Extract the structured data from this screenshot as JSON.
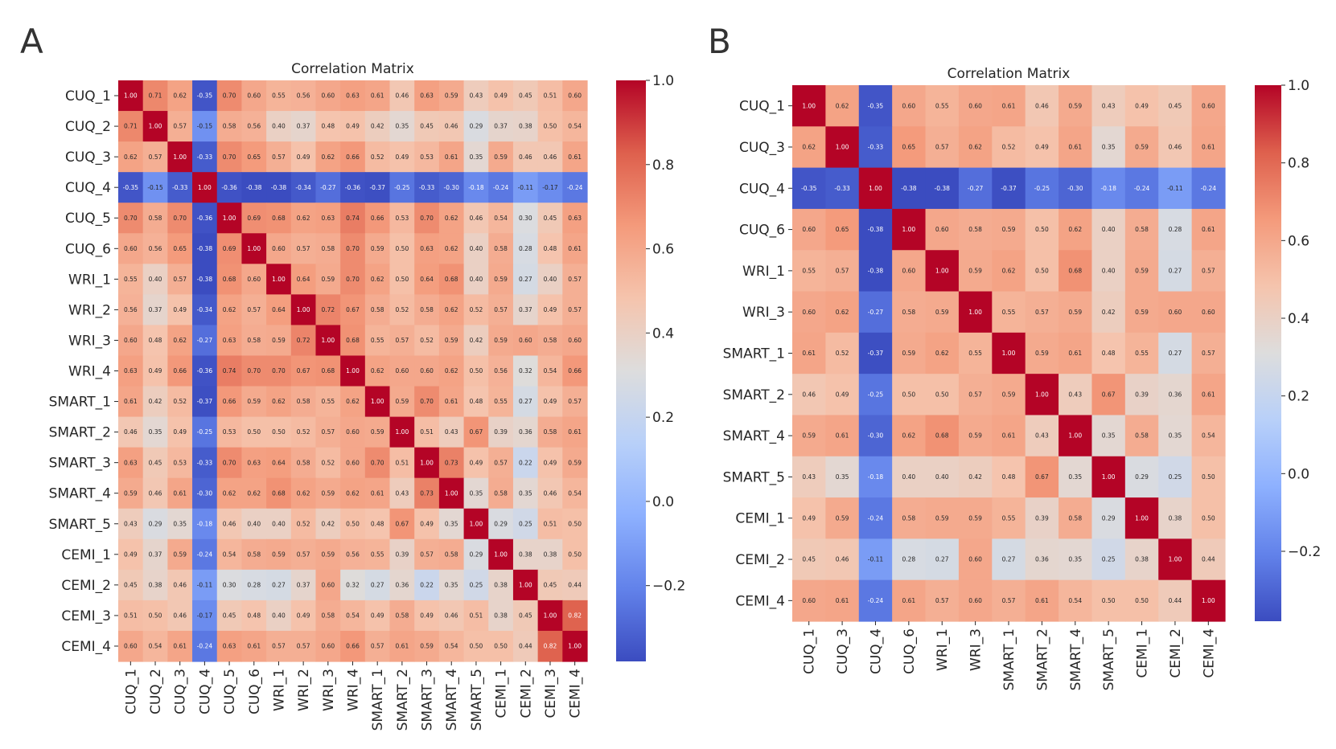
{
  "panels": [
    {
      "letter": "A"
    },
    {
      "letter": "B"
    }
  ],
  "chart_data": [
    {
      "type": "heatmap",
      "title": "Correlation Matrix",
      "labels": [
        "CUQ_1",
        "CUQ_2",
        "CUQ_3",
        "CUQ_4",
        "CUQ_5",
        "CUQ_6",
        "WRI_1",
        "WRI_2",
        "WRI_3",
        "WRI_4",
        "SMART_1",
        "SMART_2",
        "SMART_3",
        "SMART_4",
        "SMART_5",
        "CEMI_1",
        "CEMI_2",
        "CEMI_3",
        "CEMI_4"
      ],
      "values": [
        [
          1.0,
          0.71,
          0.62,
          -0.35,
          0.7,
          0.6,
          0.55,
          0.56,
          0.6,
          0.63,
          0.61,
          0.46,
          0.63,
          0.59,
          0.43,
          0.49,
          0.45,
          0.51,
          0.6
        ],
        [
          0.71,
          1.0,
          0.57,
          -0.15,
          0.58,
          0.56,
          0.4,
          0.37,
          0.48,
          0.49,
          0.42,
          0.35,
          0.45,
          0.46,
          0.29,
          0.37,
          0.38,
          0.5,
          0.54
        ],
        [
          0.62,
          0.57,
          1.0,
          -0.33,
          0.7,
          0.65,
          0.57,
          0.49,
          0.62,
          0.66,
          0.52,
          0.49,
          0.53,
          0.61,
          0.35,
          0.59,
          0.46,
          0.46,
          0.61
        ],
        [
          -0.35,
          -0.15,
          -0.33,
          1.0,
          -0.36,
          -0.38,
          -0.38,
          -0.34,
          -0.27,
          -0.36,
          -0.37,
          -0.25,
          -0.33,
          -0.3,
          -0.18,
          -0.24,
          -0.11,
          -0.17,
          -0.24
        ],
        [
          0.7,
          0.58,
          0.7,
          -0.36,
          1.0,
          0.69,
          0.68,
          0.62,
          0.63,
          0.74,
          0.66,
          0.53,
          0.7,
          0.62,
          0.46,
          0.54,
          0.3,
          0.45,
          0.63
        ],
        [
          0.6,
          0.56,
          0.65,
          -0.38,
          0.69,
          1.0,
          0.6,
          0.57,
          0.58,
          0.7,
          0.59,
          0.5,
          0.63,
          0.62,
          0.4,
          0.58,
          0.28,
          0.48,
          0.61
        ],
        [
          0.55,
          0.4,
          0.57,
          -0.38,
          0.68,
          0.6,
          1.0,
          0.64,
          0.59,
          0.7,
          0.62,
          0.5,
          0.64,
          0.68,
          0.4,
          0.59,
          0.27,
          0.4,
          0.57
        ],
        [
          0.56,
          0.37,
          0.49,
          -0.34,
          0.62,
          0.57,
          0.64,
          1.0,
          0.72,
          0.67,
          0.58,
          0.52,
          0.58,
          0.62,
          0.52,
          0.57,
          0.37,
          0.49,
          0.57
        ],
        [
          0.6,
          0.48,
          0.62,
          -0.27,
          0.63,
          0.58,
          0.59,
          0.72,
          1.0,
          0.68,
          0.55,
          0.57,
          0.52,
          0.59,
          0.42,
          0.59,
          0.6,
          0.58,
          0.6
        ],
        [
          0.63,
          0.49,
          0.66,
          -0.36,
          0.74,
          0.7,
          0.7,
          0.67,
          0.68,
          1.0,
          0.62,
          0.6,
          0.6,
          0.62,
          0.5,
          0.56,
          0.32,
          0.54,
          0.66
        ],
        [
          0.61,
          0.42,
          0.52,
          -0.37,
          0.66,
          0.59,
          0.62,
          0.58,
          0.55,
          0.62,
          1.0,
          0.59,
          0.7,
          0.61,
          0.48,
          0.55,
          0.27,
          0.49,
          0.57
        ],
        [
          0.46,
          0.35,
          0.49,
          -0.25,
          0.53,
          0.5,
          0.5,
          0.52,
          0.57,
          0.6,
          0.59,
          1.0,
          0.51,
          0.43,
          0.67,
          0.39,
          0.36,
          0.58,
          0.61
        ],
        [
          0.63,
          0.45,
          0.53,
          -0.33,
          0.7,
          0.63,
          0.64,
          0.58,
          0.52,
          0.6,
          0.7,
          0.51,
          1.0,
          0.73,
          0.49,
          0.57,
          0.22,
          0.49,
          0.59
        ],
        [
          0.59,
          0.46,
          0.61,
          -0.3,
          0.62,
          0.62,
          0.68,
          0.62,
          0.59,
          0.62,
          0.61,
          0.43,
          0.73,
          1.0,
          0.35,
          0.58,
          0.35,
          0.46,
          0.54
        ],
        [
          0.43,
          0.29,
          0.35,
          -0.18,
          0.46,
          0.4,
          0.4,
          0.52,
          0.42,
          0.5,
          0.48,
          0.67,
          0.49,
          0.35,
          1.0,
          0.29,
          0.25,
          0.51,
          0.5
        ],
        [
          0.49,
          0.37,
          0.59,
          -0.24,
          0.54,
          0.58,
          0.59,
          0.57,
          0.59,
          0.56,
          0.55,
          0.39,
          0.57,
          0.58,
          0.29,
          1.0,
          0.38,
          0.38,
          0.5
        ],
        [
          0.45,
          0.38,
          0.46,
          -0.11,
          0.3,
          0.28,
          0.27,
          0.37,
          0.6,
          0.32,
          0.27,
          0.36,
          0.22,
          0.35,
          0.25,
          0.38,
          1.0,
          0.45,
          0.44
        ],
        [
          0.51,
          0.5,
          0.46,
          -0.17,
          0.45,
          0.48,
          0.4,
          0.49,
          0.58,
          0.54,
          0.49,
          0.58,
          0.49,
          0.46,
          0.51,
          0.38,
          0.45,
          1.0,
          0.82
        ],
        [
          0.6,
          0.54,
          0.61,
          -0.24,
          0.63,
          0.61,
          0.57,
          0.57,
          0.6,
          0.66,
          0.57,
          0.61,
          0.59,
          0.54,
          0.5,
          0.5,
          0.44,
          0.82,
          1.0
        ]
      ],
      "colormap": "coolwarm",
      "vmin": -0.38,
      "vmax": 1.0,
      "colorbar_ticks": [
        "1.0",
        "0.8",
        "0.6",
        "0.4",
        "0.2",
        "0.0",
        "−0.2"
      ],
      "colorbar_tick_values": [
        1.0,
        0.8,
        0.6,
        0.4,
        0.2,
        0.0,
        -0.2
      ]
    },
    {
      "type": "heatmap",
      "title": "Correlation Matrix",
      "labels": [
        "CUQ_1",
        "CUQ_3",
        "CUQ_4",
        "CUQ_6",
        "WRI_1",
        "WRI_3",
        "SMART_1",
        "SMART_2",
        "SMART_4",
        "SMART_5",
        "CEMI_1",
        "CEMI_2",
        "CEMI_4"
      ],
      "values": [
        [
          1.0,
          0.62,
          -0.35,
          0.6,
          0.55,
          0.6,
          0.61,
          0.46,
          0.59,
          0.43,
          0.49,
          0.45,
          0.6
        ],
        [
          0.62,
          1.0,
          -0.33,
          0.65,
          0.57,
          0.62,
          0.52,
          0.49,
          0.61,
          0.35,
          0.59,
          0.46,
          0.61
        ],
        [
          -0.35,
          -0.33,
          1.0,
          -0.38,
          -0.38,
          -0.27,
          -0.37,
          -0.25,
          -0.3,
          -0.18,
          -0.24,
          -0.11,
          -0.24
        ],
        [
          0.6,
          0.65,
          -0.38,
          1.0,
          0.6,
          0.58,
          0.59,
          0.5,
          0.62,
          0.4,
          0.58,
          0.28,
          0.61
        ],
        [
          0.55,
          0.57,
          -0.38,
          0.6,
          1.0,
          0.59,
          0.62,
          0.5,
          0.68,
          0.4,
          0.59,
          0.27,
          0.57
        ],
        [
          0.6,
          0.62,
          -0.27,
          0.58,
          0.59,
          1.0,
          0.55,
          0.57,
          0.59,
          0.42,
          0.59,
          0.6,
          0.6
        ],
        [
          0.61,
          0.52,
          -0.37,
          0.59,
          0.62,
          0.55,
          1.0,
          0.59,
          0.61,
          0.48,
          0.55,
          0.27,
          0.57
        ],
        [
          0.46,
          0.49,
          -0.25,
          0.5,
          0.5,
          0.57,
          0.59,
          1.0,
          0.43,
          0.67,
          0.39,
          0.36,
          0.61
        ],
        [
          0.59,
          0.61,
          -0.3,
          0.62,
          0.68,
          0.59,
          0.61,
          0.43,
          1.0,
          0.35,
          0.58,
          0.35,
          0.54
        ],
        [
          0.43,
          0.35,
          -0.18,
          0.4,
          0.4,
          0.42,
          0.48,
          0.67,
          0.35,
          1.0,
          0.29,
          0.25,
          0.5
        ],
        [
          0.49,
          0.59,
          -0.24,
          0.58,
          0.59,
          0.59,
          0.55,
          0.39,
          0.58,
          0.29,
          1.0,
          0.38,
          0.5
        ],
        [
          0.45,
          0.46,
          -0.11,
          0.28,
          0.27,
          0.6,
          0.27,
          0.36,
          0.35,
          0.25,
          0.38,
          1.0,
          0.44
        ],
        [
          0.6,
          0.61,
          -0.24,
          0.61,
          0.57,
          0.6,
          0.57,
          0.61,
          0.54,
          0.5,
          0.5,
          0.44,
          1.0
        ]
      ],
      "colormap": "coolwarm",
      "vmin": -0.38,
      "vmax": 1.0,
      "colorbar_ticks": [
        "1.0",
        "0.8",
        "0.6",
        "0.4",
        "0.2",
        "0.0",
        "−0.2"
      ],
      "colorbar_tick_values": [
        1.0,
        0.8,
        0.6,
        0.4,
        0.2,
        0.0,
        -0.2
      ]
    }
  ]
}
